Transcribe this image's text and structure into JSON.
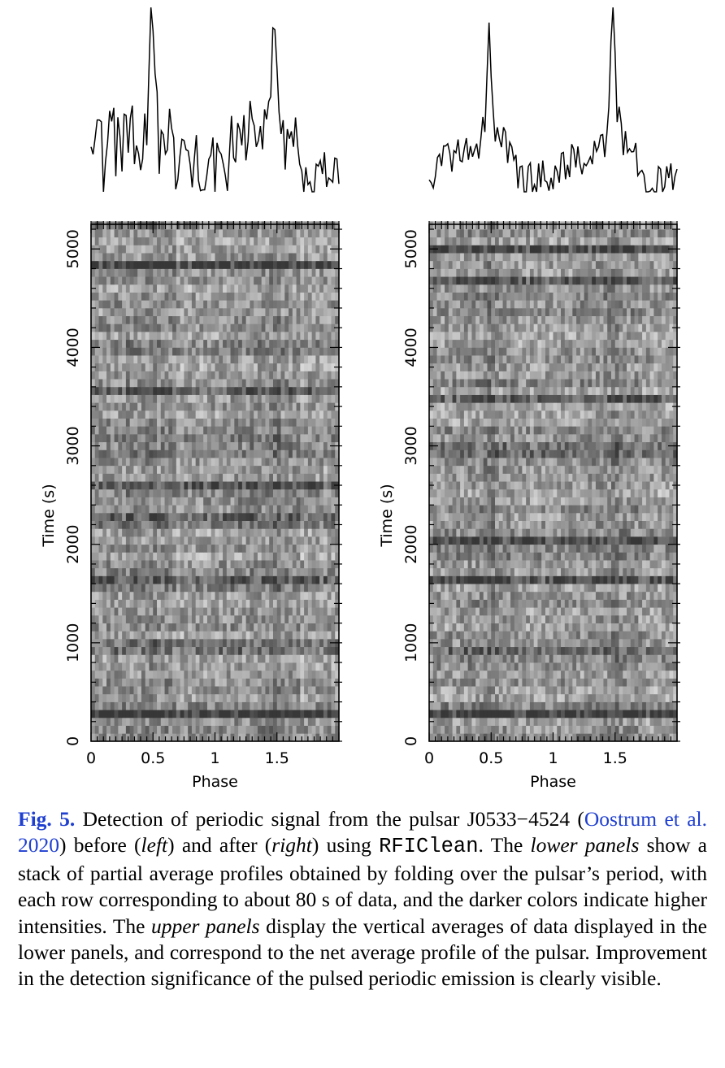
{
  "chart_data": [
    {
      "type": "heatmap",
      "panel": "left",
      "title": "",
      "xlabel": "Phase",
      "ylabel": "Time (s)",
      "xlim": [
        0,
        2
      ],
      "ylim": [
        0,
        5250
      ],
      "xticks": [
        "0",
        "0.5",
        "1",
        "1.5"
      ],
      "yticks": [
        "0",
        "1000",
        "2000",
        "3000",
        "4000",
        "5000"
      ],
      "row_duration_s": 80,
      "colormap": "grey, darker = higher intensity",
      "dark_bands_time_s": [
        280,
        950,
        1650,
        2250,
        2580,
        3550,
        4850
      ],
      "profile": {
        "phase": [
          0,
          0.05,
          0.1,
          0.15,
          0.2,
          0.25,
          0.3,
          0.35,
          0.4,
          0.45,
          0.5,
          0.55,
          0.6,
          0.65,
          0.7,
          0.75,
          0.8,
          0.85,
          0.9,
          0.95,
          1.0,
          1.05,
          1.1,
          1.15,
          1.2,
          1.25,
          1.3,
          1.35,
          1.4,
          1.45,
          1.5,
          1.55,
          1.6,
          1.65,
          1.7,
          1.75,
          1.8,
          1.85,
          1.9,
          1.95,
          2.0
        ],
        "intensity": [
          0.25,
          0.45,
          0.35,
          0.55,
          0.5,
          0.4,
          0.7,
          0.6,
          0.55,
          0.75,
          1.0,
          0.55,
          0.65,
          0.6,
          0.1,
          0.2,
          0.25,
          0.3,
          0.2,
          0.3,
          0.25,
          0.45,
          0.35,
          0.55,
          0.5,
          0.4,
          0.7,
          0.6,
          0.55,
          0.75,
          1.0,
          0.55,
          0.65,
          0.6,
          0.1,
          0.2,
          0.25,
          0.3,
          0.2,
          0.3,
          0.3
        ]
      }
    },
    {
      "type": "heatmap",
      "panel": "right",
      "title": "",
      "xlabel": "Phase",
      "ylabel": "Time (s)",
      "xlim": [
        0,
        2
      ],
      "ylim": [
        0,
        5250
      ],
      "xticks": [
        "0",
        "0.5",
        "1",
        "1.5"
      ],
      "yticks": [
        "0",
        "1000",
        "2000",
        "3000",
        "4000",
        "5000"
      ],
      "row_duration_s": 80,
      "colormap": "grey, darker = higher intensity",
      "dark_bands_time_s": [
        280,
        950,
        1650,
        2050,
        2950,
        3500,
        4700,
        5000
      ],
      "profile": {
        "phase": [
          0,
          0.05,
          0.1,
          0.15,
          0.2,
          0.25,
          0.3,
          0.35,
          0.4,
          0.45,
          0.5,
          0.55,
          0.6,
          0.65,
          0.7,
          0.75,
          0.8,
          0.85,
          0.9,
          0.95,
          1.0,
          1.05,
          1.1,
          1.15,
          1.2,
          1.25,
          1.3,
          1.35,
          1.4,
          1.45,
          1.5,
          1.55,
          1.6,
          1.65,
          1.7,
          1.75,
          1.8,
          1.85,
          1.9,
          1.95,
          2.0
        ],
        "intensity": [
          0.15,
          0.2,
          0.28,
          0.3,
          0.38,
          0.35,
          0.4,
          0.45,
          0.5,
          0.65,
          1.0,
          0.55,
          0.48,
          0.45,
          0.2,
          0.1,
          0.12,
          0.1,
          0.15,
          0.1,
          0.15,
          0.2,
          0.28,
          0.3,
          0.38,
          0.35,
          0.4,
          0.45,
          0.5,
          0.65,
          1.0,
          0.55,
          0.48,
          0.45,
          0.2,
          0.1,
          0.12,
          0.1,
          0.15,
          0.1,
          0.12
        ]
      }
    }
  ],
  "caption": {
    "label": "Fig. 5.",
    "t1": " Detection of periodic signal from the pulsar J0533−4524 (",
    "cite": "Oostrum et al. 2020",
    "t2": ") before (",
    "left": "left",
    "t3": ") and after (",
    "right": "right",
    "t4": ") using ",
    "code": "RFIClean",
    "t5": ". The ",
    "lower": "lower panels",
    "t6": " show a stack of partial average profiles obtained by folding over the pulsar’s period, with each row corresponding to about 80 s of data, and the darker colors indicate higher intensities. The ",
    "upper": "upper panels",
    "t7": " display the vertical averages of data displayed in the lower panels, and correspond to the net average profile of the pulsar. Improvement in the detection significance of the pulsed periodic emission is clearly visible."
  }
}
